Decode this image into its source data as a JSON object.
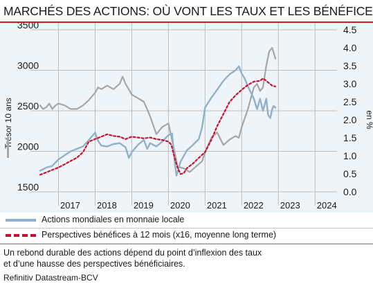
{
  "title": "MARCHÉS DES ACTIONS: OÙ VONT LES TAUX ET LES BÉNÉFICES?",
  "legend": {
    "actions": "Actions mondiales en monnaie locale",
    "perspectives": "Perspectives bénéfices à 12 mois (x16, moyenne long terme)"
  },
  "note_line1": "Un rebond durable des actions dépend du point d’inflexion des taux",
  "note_line2": "et d’une hausse des perspectives bénéficiaires.",
  "source": "Refinitiv Datastream-BCV",
  "colors": {
    "actions": "#8fb1c9",
    "perspectives": "#c8102e",
    "tresor": "#a6a6a6",
    "accent": "#cc1f1f",
    "plot_bg": "#eef4f7"
  },
  "chart_data": {
    "type": "line",
    "left_axis": {
      "label": "Trésor 10 ans",
      "min": 1500,
      "max": 3500,
      "ticks": [
        "1500",
        "2000",
        "2500",
        "3000",
        "3500"
      ]
    },
    "right_axis": {
      "label": "en %",
      "min": 0.0,
      "max": 4.5,
      "ticks": [
        "0.0",
        "0.5",
        "1.0",
        "1.5",
        "2.0",
        "2.5",
        "3.0",
        "3.5",
        "4.0",
        "4.5"
      ]
    },
    "x_axis": {
      "min": 2016.5,
      "max": 2024.6,
      "ticks": [
        2017,
        2018,
        2019,
        2020,
        2021,
        2022,
        2023,
        2024
      ],
      "tick_labels": [
        "2017",
        "2018",
        "2019",
        "2020",
        "2021",
        "2022",
        "2023",
        "2024"
      ]
    },
    "grid": true,
    "series": [
      {
        "name": "Actions mondiales en monnaie locale",
        "axis": "left",
        "style": "solid",
        "x": [
          2016.5,
          2016.67,
          2016.83,
          2017.0,
          2017.17,
          2017.33,
          2017.5,
          2017.67,
          2017.83,
          2018.0,
          2018.08,
          2018.17,
          2018.33,
          2018.5,
          2018.67,
          2018.83,
          2018.92,
          2019.0,
          2019.17,
          2019.33,
          2019.42,
          2019.5,
          2019.67,
          2019.83,
          2020.0,
          2020.1,
          2020.17,
          2020.22,
          2020.33,
          2020.5,
          2020.67,
          2020.83,
          2020.92,
          2021.0,
          2021.17,
          2021.33,
          2021.5,
          2021.67,
          2021.83,
          2021.92,
          2022.0,
          2022.08,
          2022.17,
          2022.33,
          2022.42,
          2022.5,
          2022.58,
          2022.67,
          2022.72,
          2022.78,
          2022.83,
          2022.87,
          2022.92
        ],
        "y": [
          1760,
          1800,
          1820,
          1900,
          1950,
          2000,
          2030,
          2060,
          2140,
          2230,
          2130,
          2070,
          2060,
          2090,
          2100,
          2050,
          1920,
          1990,
          2080,
          2140,
          2030,
          2100,
          2060,
          2120,
          2200,
          2220,
          1870,
          1700,
          1870,
          2010,
          2080,
          2150,
          2300,
          2540,
          2660,
          2760,
          2870,
          2950,
          3000,
          3050,
          2960,
          2900,
          2800,
          2650,
          2520,
          2650,
          2500,
          2650,
          2450,
          2410,
          2520,
          2560,
          2540
        ]
      },
      {
        "name": "Perspectives bénéfices à 12 mois (x16, moyenne long terme)",
        "axis": "left",
        "style": "dashed",
        "x": [
          2016.5,
          2016.67,
          2016.83,
          2017.0,
          2017.17,
          2017.33,
          2017.5,
          2017.67,
          2017.83,
          2018.0,
          2018.17,
          2018.33,
          2018.5,
          2018.67,
          2018.83,
          2019.0,
          2019.17,
          2019.33,
          2019.5,
          2019.67,
          2019.83,
          2020.0,
          2020.08,
          2020.17,
          2020.25,
          2020.33,
          2020.42,
          2020.5,
          2020.67,
          2020.83,
          2021.0,
          2021.17,
          2021.33,
          2021.5,
          2021.67,
          2021.83,
          2022.0,
          2022.17,
          2022.33,
          2022.5,
          2022.58,
          2022.67,
          2022.75,
          2022.83,
          2022.92
        ],
        "y": [
          1710,
          1740,
          1770,
          1800,
          1840,
          1880,
          1920,
          1990,
          2120,
          2150,
          2180,
          2210,
          2190,
          2180,
          2150,
          2180,
          2170,
          2160,
          2170,
          2150,
          2140,
          2120,
          2080,
          1920,
          1800,
          1720,
          1730,
          1790,
          1850,
          1920,
          1990,
          2140,
          2310,
          2460,
          2610,
          2690,
          2760,
          2820,
          2860,
          2870,
          2900,
          2870,
          2840,
          2810,
          2800
        ]
      },
      {
        "name": "Trésor 10 ans",
        "axis": "right",
        "style": "solid",
        "x": [
          2016.5,
          2016.58,
          2016.67,
          2016.75,
          2016.83,
          2016.92,
          2017.0,
          2017.17,
          2017.33,
          2017.5,
          2017.67,
          2017.83,
          2018.0,
          2018.08,
          2018.17,
          2018.33,
          2018.5,
          2018.67,
          2018.75,
          2018.83,
          2019.0,
          2019.17,
          2019.33,
          2019.5,
          2019.67,
          2019.83,
          2020.0,
          2020.17,
          2020.25,
          2020.42,
          2020.58,
          2020.75,
          2020.92,
          2021.0,
          2021.17,
          2021.33,
          2021.5,
          2021.67,
          2021.83,
          2021.92,
          2022.0,
          2022.17,
          2022.33,
          2022.42,
          2022.5,
          2022.58,
          2022.67,
          2022.75,
          2022.83,
          2022.92
        ],
        "y": [
          2.4,
          2.3,
          2.35,
          2.45,
          2.3,
          2.4,
          2.45,
          2.4,
          2.3,
          2.3,
          2.4,
          2.55,
          2.75,
          2.9,
          2.85,
          2.95,
          2.85,
          3.0,
          3.2,
          3.0,
          2.7,
          2.6,
          2.5,
          2.1,
          1.6,
          1.8,
          1.9,
          1.1,
          0.7,
          0.65,
          0.55,
          0.7,
          0.85,
          1.1,
          1.5,
          1.65,
          1.3,
          1.45,
          1.55,
          1.5,
          1.8,
          2.3,
          2.9,
          3.0,
          2.8,
          2.9,
          3.5,
          3.9,
          4.0,
          3.7
        ]
      }
    ]
  }
}
